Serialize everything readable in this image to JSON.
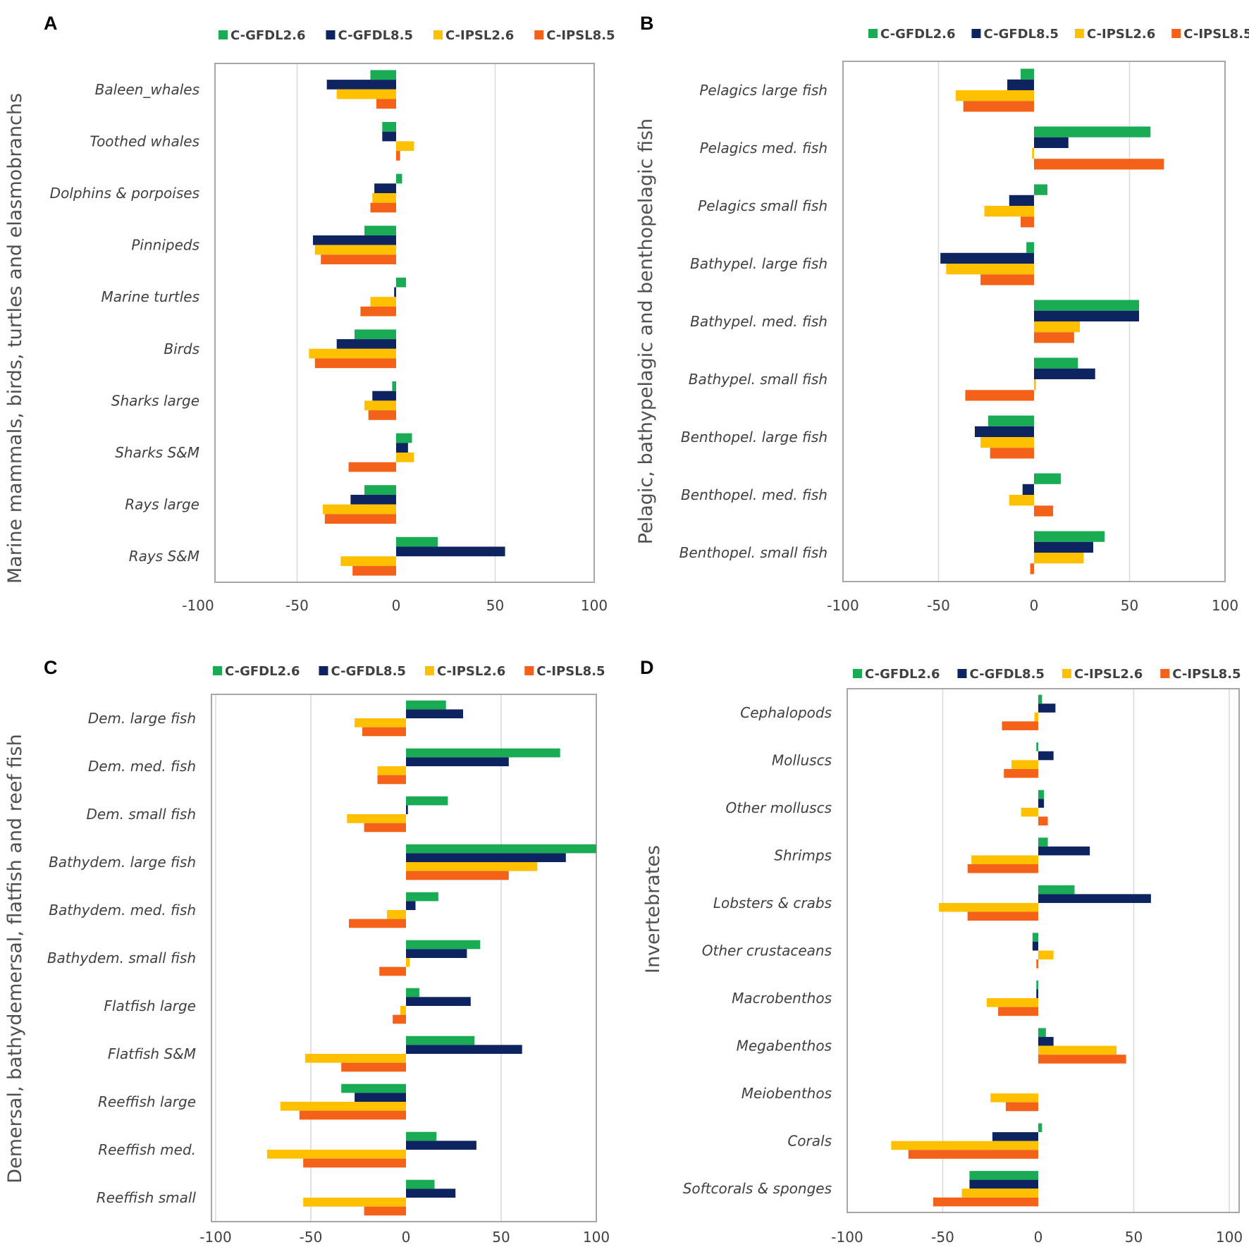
{
  "figure": {
    "series_colors": {
      "C-GFDL2.6": "#1aab55",
      "C-GFDL8.5": "#0e2460",
      "C-IPSL2.6": "#ffc000",
      "C-IPSL8.5": "#f4621a"
    },
    "gridline_color": "#d9d9d9",
    "frame_color": "#a6a6a6"
  },
  "chart_data": [
    {
      "panel": "A",
      "type": "bar",
      "orientation": "horizontal",
      "ylabel": "Marine mammals, birds, turtles and elasmobranchs",
      "xlim": [
        -100,
        100
      ],
      "xticks": [
        "-100",
        "-50",
        "0",
        "50",
        "100"
      ],
      "legend_position": "top",
      "categories": [
        "Baleen_whales",
        "Toothed whales",
        "Dolphins & porpoises",
        "Pinnipeds",
        "Marine turtles",
        "Birds",
        "Sharks large",
        "Sharks S&M",
        "Rays large",
        "Rays S&M"
      ],
      "series": [
        {
          "name": "C-GFDL2.6",
          "values": [
            -13,
            -7,
            3,
            -16,
            5,
            -21,
            -2,
            8,
            -16,
            21
          ]
        },
        {
          "name": "C-GFDL8.5",
          "values": [
            -35,
            -7,
            -11,
            -42,
            -1,
            -30,
            -12,
            6,
            -23,
            55
          ]
        },
        {
          "name": "C-IPSL2.6",
          "values": [
            -30,
            9,
            -12,
            -41,
            -13,
            -44,
            -16,
            9,
            -37,
            -28
          ]
        },
        {
          "name": "C-IPSL8.5",
          "values": [
            -10,
            2,
            -13,
            -38,
            -18,
            -41,
            -14,
            -24,
            -36,
            -22
          ]
        }
      ]
    },
    {
      "panel": "B",
      "type": "bar",
      "orientation": "horizontal",
      "ylabel": "Pelagic, bathypelagic and benthopelagic fish",
      "xlim": [
        -100,
        100
      ],
      "xticks": [
        "-100",
        "-50",
        "0",
        "50",
        "100"
      ],
      "legend_position": "top",
      "categories": [
        "Pelagics large fish",
        "Pelagics med. fish",
        "Pelagics small fish",
        "Bathypel. large fish",
        "Bathypel. med. fish",
        "Bathypel. small fish",
        "Benthopel. large fish",
        "Benthopel. med. fish",
        "Benthopel. small fish"
      ],
      "series": [
        {
          "name": "C-GFDL2.6",
          "values": [
            -7,
            61,
            7,
            -4,
            55,
            23,
            -24,
            14,
            37
          ]
        },
        {
          "name": "C-GFDL8.5",
          "values": [
            -14,
            18,
            -13,
            -49,
            55,
            32,
            -31,
            -6,
            31
          ]
        },
        {
          "name": "C-IPSL2.6",
          "values": [
            -41,
            -1,
            -26,
            -46,
            24,
            1,
            -28,
            -13,
            26
          ]
        },
        {
          "name": "C-IPSL8.5",
          "values": [
            -37,
            68,
            -7,
            -28,
            21,
            -36,
            -23,
            10,
            -2
          ]
        }
      ]
    },
    {
      "panel": "C",
      "type": "bar",
      "orientation": "horizontal",
      "ylabel": "Demersal, bathydemersal, flatfish and reef fish",
      "xlim": [
        -100,
        100
      ],
      "xticks": [
        "-100",
        "-50",
        "0",
        "50",
        "100"
      ],
      "legend_position": "top",
      "categories": [
        "Dem. large fish",
        "Dem. med. fish",
        "Dem. small fish",
        "Bathydem. large fish",
        "Bathydem. med. fish",
        "Bathydem. small fish",
        "Flatfish large",
        "Flatfish S&M",
        "Reeffish large",
        "Reeffish med.",
        "Reeffish small"
      ],
      "series": [
        {
          "name": "C-GFDL2.6",
          "values": [
            21,
            81,
            22,
            100,
            17,
            39,
            7,
            36,
            -34,
            16,
            15
          ]
        },
        {
          "name": "C-GFDL8.5",
          "values": [
            30,
            54,
            1,
            84,
            5,
            32,
            34,
            61,
            -27,
            37,
            26
          ]
        },
        {
          "name": "C-IPSL2.6",
          "values": [
            -27,
            -15,
            -31,
            69,
            -10,
            2,
            -3,
            -53,
            -66,
            -73,
            -54
          ]
        },
        {
          "name": "C-IPSL8.5",
          "values": [
            -23,
            -15,
            -22,
            54,
            -30,
            -14,
            -7,
            -34,
            -56,
            -54,
            -22
          ]
        }
      ]
    },
    {
      "panel": "D",
      "type": "bar",
      "orientation": "horizontal",
      "ylabel": "Invertebrates",
      "xlim": [
        -100,
        100
      ],
      "xticks": [
        "-100",
        "-50",
        "0",
        "50",
        "100"
      ],
      "legend_position": "top",
      "categories": [
        "Cephalopods",
        "Molluscs",
        "Other molluscs",
        "Shrimps",
        "Lobsters & crabs",
        "Other crustaceans",
        "Macrobenthos",
        "Megabenthos",
        "Meiobenthos",
        "Corals",
        "Softcorals & sponges"
      ],
      "series": [
        {
          "name": "C-GFDL2.6",
          "values": [
            2,
            -1,
            3,
            5,
            19,
            -3,
            -1,
            4,
            0,
            2,
            -36
          ]
        },
        {
          "name": "C-GFDL8.5",
          "values": [
            9,
            8,
            3,
            27,
            59,
            -3,
            -1,
            8,
            0,
            -24,
            -36
          ]
        },
        {
          "name": "C-IPSL2.6",
          "values": [
            -2,
            -14,
            -9,
            -35,
            -52,
            8,
            -27,
            41,
            -25,
            -77,
            -40
          ]
        },
        {
          "name": "C-IPSL8.5",
          "values": [
            -19,
            -18,
            5,
            -37,
            -37,
            -1,
            -21,
            46,
            -17,
            -68,
            -55
          ]
        }
      ]
    }
  ]
}
